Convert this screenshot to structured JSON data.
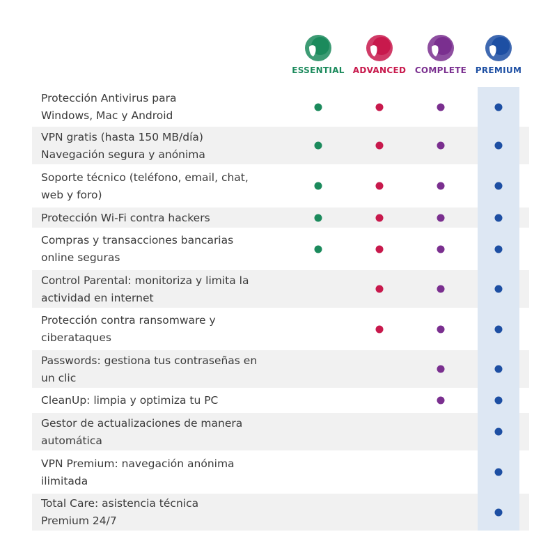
{
  "plans": [
    {
      "name": "ESSENTIAL",
      "color": "#1b8a5c"
    },
    {
      "name": "ADVANCED",
      "color": "#c8194c"
    },
    {
      "name": "COMPLETE",
      "color": "#7a2f8f"
    },
    {
      "name": "PREMIUM",
      "color": "#1d4fa3"
    }
  ],
  "features": [
    {
      "lines": [
        "Protección Antivirus para",
        "Windows, Mac y Android"
      ],
      "included": [
        true,
        true,
        true,
        true
      ]
    },
    {
      "lines": [
        "VPN gratis (hasta 150 MB/día)",
        "Navegación segura y anónima"
      ],
      "included": [
        true,
        true,
        true,
        true
      ]
    },
    {
      "lines": [
        "Soporte técnico (teléfono, email, chat,",
        "web y foro)"
      ],
      "included": [
        true,
        true,
        true,
        true
      ]
    },
    {
      "lines": [
        "Protección Wi-Fi contra hackers"
      ],
      "included": [
        true,
        true,
        true,
        true
      ]
    },
    {
      "lines": [
        "Compras y transacciones bancarias",
        "online seguras"
      ],
      "included": [
        true,
        true,
        true,
        true
      ]
    },
    {
      "lines": [
        "Control Parental: monitoriza y limita la",
        "actividad en internet"
      ],
      "included": [
        false,
        true,
        true,
        true
      ]
    },
    {
      "lines": [
        "Protección contra ransomware y",
        "ciberataques"
      ],
      "included": [
        false,
        true,
        true,
        true
      ]
    },
    {
      "lines": [
        "Passwords: gestiona tus contraseñas en",
        "un clic"
      ],
      "included": [
        false,
        false,
        true,
        true
      ]
    },
    {
      "lines": [
        "CleanUp: limpia y optimiza tu PC"
      ],
      "included": [
        false,
        false,
        true,
        true
      ]
    },
    {
      "lines": [
        "Gestor de actualizaciones de manera",
        "automática"
      ],
      "included": [
        false,
        false,
        false,
        true
      ]
    },
    {
      "lines": [
        "VPN Premium: navegación anónima",
        "ilimitada"
      ],
      "included": [
        false,
        false,
        false,
        true
      ]
    },
    {
      "lines": [
        "Total Care: asistencia técnica",
        "Premium 24/7"
      ],
      "included": [
        false,
        false,
        false,
        true
      ]
    }
  ]
}
